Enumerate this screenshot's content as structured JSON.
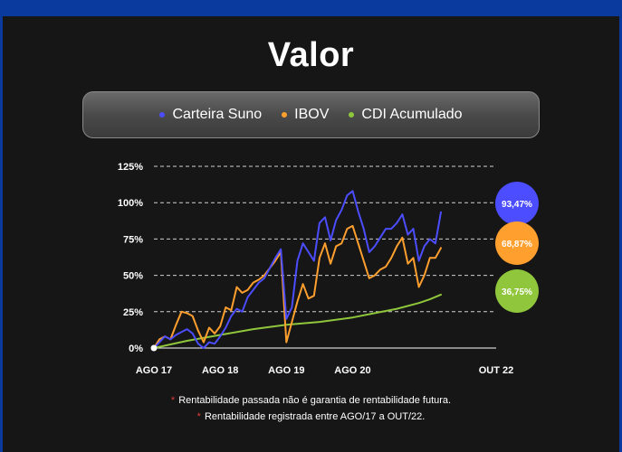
{
  "title": "Valor",
  "colors": {
    "carteira": "#4b4dff",
    "ibov": "#ff9f2e",
    "cdi": "#8fc63b",
    "background": "#161616",
    "border": "#0b3a9e"
  },
  "legend": [
    {
      "label": "Carteira Suno",
      "color": "#4b4dff"
    },
    {
      "label": "IBOV",
      "color": "#ff9f2e"
    },
    {
      "label": "CDI Acumulado",
      "color": "#8fc63b"
    }
  ],
  "notes": [
    "Rentabilidade passada não é garantia de rentabilidade futura.",
    "Rentabilidade registrada entre AGO/17 a OUT/22."
  ],
  "chart_data": {
    "type": "line",
    "title": "Valor",
    "xlabel": "",
    "ylabel": "",
    "ylim": [
      0,
      125
    ],
    "yticks": [
      "0%",
      "25%",
      "50%",
      "75%",
      "100%",
      "125%"
    ],
    "ytick_values": [
      0,
      25,
      50,
      75,
      100,
      125
    ],
    "xticks": [
      "AGO 17",
      "AGO 18",
      "AGO 19",
      "AGO 20",
      "OUT 22"
    ],
    "xtick_months": [
      0,
      12,
      24,
      36,
      62
    ],
    "x_range_months": [
      0,
      62
    ],
    "grid": true,
    "legend_position": "top",
    "series": [
      {
        "name": "Carteira Suno",
        "color": "#4b4dff",
        "end_label": "93,47%",
        "points": [
          [
            0,
            0
          ],
          [
            1,
            4
          ],
          [
            2,
            8
          ],
          [
            3,
            6
          ],
          [
            4,
            9
          ],
          [
            5,
            11
          ],
          [
            6,
            13
          ],
          [
            7,
            10
          ],
          [
            8,
            3
          ],
          [
            9,
            0
          ],
          [
            10,
            4
          ],
          [
            11,
            3
          ],
          [
            12,
            8
          ],
          [
            13,
            14
          ],
          [
            14,
            22
          ],
          [
            15,
            27
          ],
          [
            16,
            25
          ],
          [
            17,
            35
          ],
          [
            18,
            40
          ],
          [
            19,
            45
          ],
          [
            20,
            48
          ],
          [
            21,
            55
          ],
          [
            22,
            62
          ],
          [
            23,
            68
          ],
          [
            24,
            20
          ],
          [
            25,
            28
          ],
          [
            26,
            60
          ],
          [
            27,
            72
          ],
          [
            28,
            66
          ],
          [
            29,
            60
          ],
          [
            30,
            86
          ],
          [
            31,
            90
          ],
          [
            32,
            74
          ],
          [
            33,
            88
          ],
          [
            34,
            95
          ],
          [
            35,
            105
          ],
          [
            36,
            108
          ],
          [
            37,
            94
          ],
          [
            38,
            82
          ],
          [
            39,
            66
          ],
          [
            40,
            70
          ],
          [
            41,
            76
          ],
          [
            42,
            82
          ],
          [
            43,
            82
          ],
          [
            44,
            86
          ],
          [
            45,
            92
          ],
          [
            46,
            78
          ],
          [
            47,
            82
          ],
          [
            48,
            60
          ],
          [
            49,
            70
          ],
          [
            50,
            75
          ],
          [
            51,
            72
          ],
          [
            52,
            93.47
          ]
        ]
      },
      {
        "name": "IBOV",
        "color": "#ff9f2e",
        "end_label": "68,87%",
        "points": [
          [
            0,
            0
          ],
          [
            1,
            6
          ],
          [
            2,
            8
          ],
          [
            3,
            6
          ],
          [
            4,
            16
          ],
          [
            5,
            25
          ],
          [
            6,
            24
          ],
          [
            7,
            22
          ],
          [
            8,
            12
          ],
          [
            9,
            4
          ],
          [
            10,
            14
          ],
          [
            11,
            10
          ],
          [
            12,
            15
          ],
          [
            13,
            28
          ],
          [
            14,
            26
          ],
          [
            15,
            42
          ],
          [
            16,
            38
          ],
          [
            17,
            40
          ],
          [
            18,
            45
          ],
          [
            19,
            47
          ],
          [
            20,
            50
          ],
          [
            21,
            55
          ],
          [
            22,
            60
          ],
          [
            23,
            66
          ],
          [
            24,
            4
          ],
          [
            25,
            18
          ],
          [
            26,
            32
          ],
          [
            27,
            44
          ],
          [
            28,
            34
          ],
          [
            29,
            36
          ],
          [
            30,
            62
          ],
          [
            31,
            72
          ],
          [
            32,
            58
          ],
          [
            33,
            70
          ],
          [
            34,
            72
          ],
          [
            35,
            82
          ],
          [
            36,
            84
          ],
          [
            37,
            72
          ],
          [
            38,
            60
          ],
          [
            39,
            48
          ],
          [
            40,
            50
          ],
          [
            41,
            54
          ],
          [
            42,
            56
          ],
          [
            43,
            62
          ],
          [
            44,
            70
          ],
          [
            45,
            76
          ],
          [
            46,
            58
          ],
          [
            47,
            62
          ],
          [
            48,
            42
          ],
          [
            49,
            50
          ],
          [
            50,
            62
          ],
          [
            51,
            62
          ],
          [
            52,
            68.87
          ]
        ]
      },
      {
        "name": "CDI Acumulado",
        "color": "#8fc63b",
        "end_label": "36,75%",
        "points": [
          [
            0,
            0
          ],
          [
            6,
            5
          ],
          [
            12,
            9
          ],
          [
            18,
            13
          ],
          [
            24,
            16
          ],
          [
            30,
            18
          ],
          [
            36,
            21
          ],
          [
            40,
            24
          ],
          [
            44,
            27
          ],
          [
            48,
            31
          ],
          [
            50,
            33.5
          ],
          [
            52,
            36.75
          ]
        ]
      }
    ]
  }
}
